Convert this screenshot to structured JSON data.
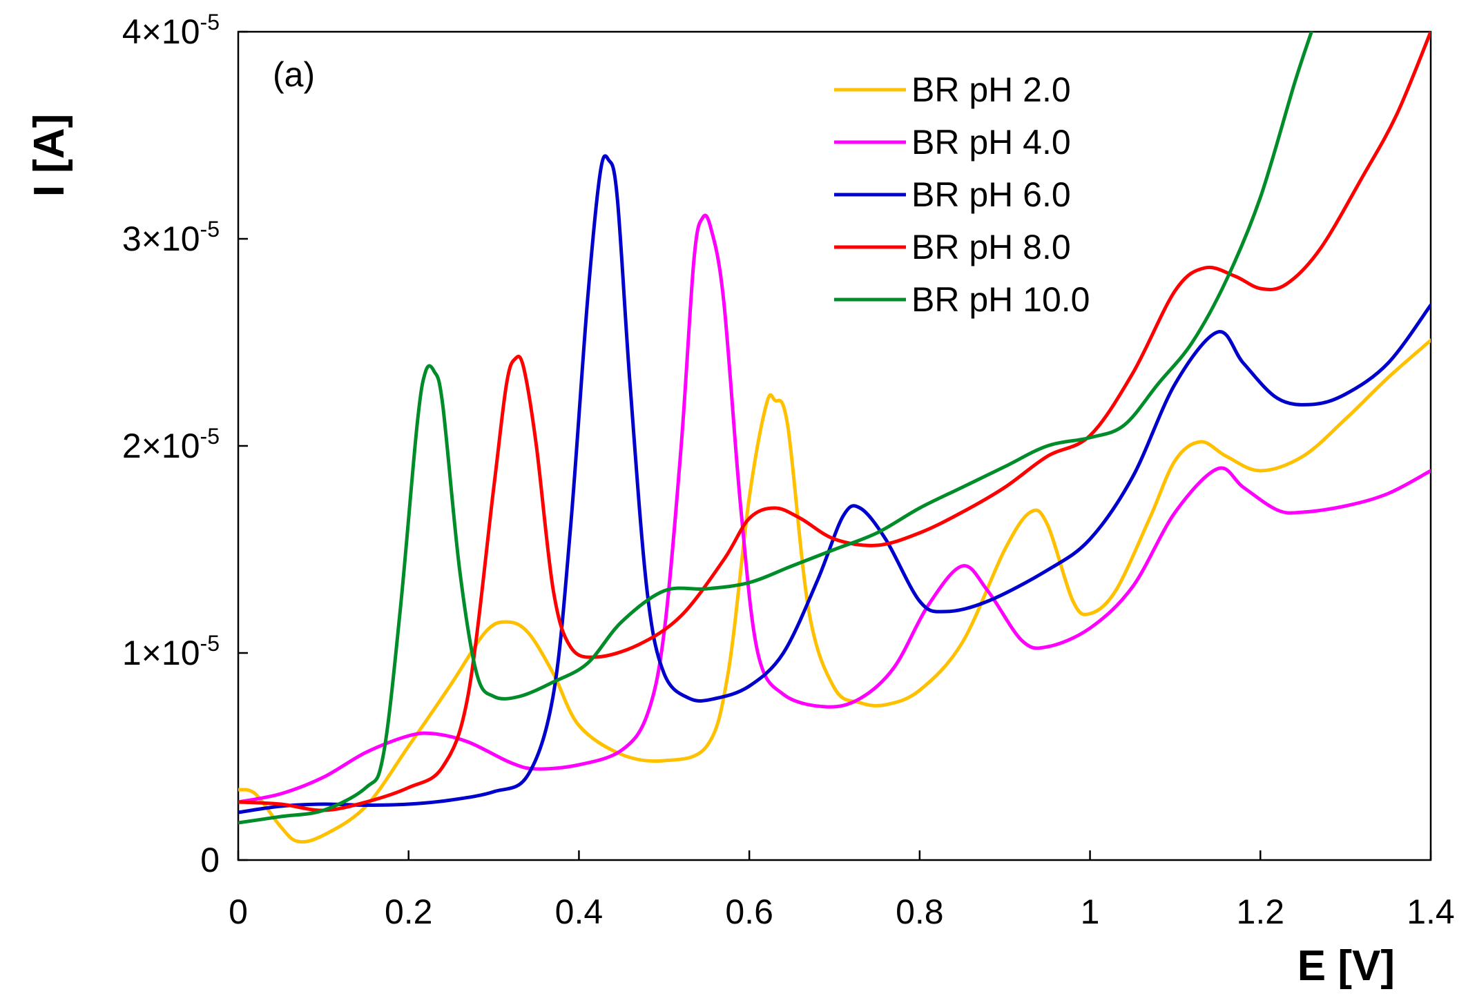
{
  "chart_data": {
    "type": "line",
    "panel_label": "(a)",
    "xlabel": "E [V]",
    "ylabel": "I [A]",
    "xlim": [
      0,
      1.4
    ],
    "ylim": [
      0,
      4e-05
    ],
    "grid": false,
    "legend_position": "top-right",
    "x_ticks": [
      {
        "value": 0,
        "label": "0"
      },
      {
        "value": 0.2,
        "label": "0.2"
      },
      {
        "value": 0.4,
        "label": "0.4"
      },
      {
        "value": 0.6,
        "label": "0.6"
      },
      {
        "value": 0.8,
        "label": "0.8"
      },
      {
        "value": 1.0,
        "label": "1"
      },
      {
        "value": 1.2,
        "label": "1.2"
      },
      {
        "value": 1.4,
        "label": "1.4"
      }
    ],
    "y_ticks": [
      {
        "value": 0,
        "mantissa": "0",
        "exponent": ""
      },
      {
        "value": 1e-05,
        "mantissa": "1×10",
        "exponent": "-5"
      },
      {
        "value": 2e-05,
        "mantissa": "2×10",
        "exponent": "-5"
      },
      {
        "value": 3e-05,
        "mantissa": "3×10",
        "exponent": "-5"
      },
      {
        "value": 4e-05,
        "mantissa": "4×10",
        "exponent": "-5"
      }
    ],
    "series": [
      {
        "name": "BR pH 2.0",
        "color": "#ffc000",
        "points": [
          [
            0,
            3.4e-06
          ],
          [
            0.02,
            3.2e-06
          ],
          [
            0.05,
            1.6e-06
          ],
          [
            0.07,
            9e-07
          ],
          [
            0.1,
            1.2e-06
          ],
          [
            0.15,
            2.6e-06
          ],
          [
            0.2,
            5.5e-06
          ],
          [
            0.25,
            8.5e-06
          ],
          [
            0.29,
            1.1e-05
          ],
          [
            0.315,
            1.15e-05
          ],
          [
            0.34,
            1.1e-05
          ],
          [
            0.37,
            9e-06
          ],
          [
            0.4,
            6.5e-06
          ],
          [
            0.45,
            5.1e-06
          ],
          [
            0.5,
            4.8e-06
          ],
          [
            0.55,
            5.5e-06
          ],
          [
            0.575,
            9e-06
          ],
          [
            0.6,
            1.75e-05
          ],
          [
            0.62,
            2.2e-05
          ],
          [
            0.63,
            2.22e-05
          ],
          [
            0.645,
            2.1e-05
          ],
          [
            0.67,
            1.2e-05
          ],
          [
            0.7,
            8.3e-06
          ],
          [
            0.73,
            7.6e-06
          ],
          [
            0.76,
            7.5e-06
          ],
          [
            0.8,
            8.2e-06
          ],
          [
            0.85,
            1.05e-05
          ],
          [
            0.9,
            1.5e-05
          ],
          [
            0.93,
            1.68e-05
          ],
          [
            0.95,
            1.62e-05
          ],
          [
            0.98,
            1.25e-05
          ],
          [
            1.0,
            1.19e-05
          ],
          [
            1.03,
            1.3e-05
          ],
          [
            1.07,
            1.65e-05
          ],
          [
            1.1,
            1.93e-05
          ],
          [
            1.13,
            2.02e-05
          ],
          [
            1.16,
            1.95e-05
          ],
          [
            1.2,
            1.88e-05
          ],
          [
            1.25,
            1.95e-05
          ],
          [
            1.3,
            2.13e-05
          ],
          [
            1.35,
            2.33e-05
          ],
          [
            1.4,
            2.51e-05
          ]
        ]
      },
      {
        "name": "BR pH 4.0",
        "color": "#ff00ff",
        "points": [
          [
            0,
            2.8e-06
          ],
          [
            0.05,
            3.2e-06
          ],
          [
            0.1,
            4e-06
          ],
          [
            0.15,
            5.2e-06
          ],
          [
            0.2,
            6e-06
          ],
          [
            0.23,
            6.1e-06
          ],
          [
            0.27,
            5.7e-06
          ],
          [
            0.32,
            4.7e-06
          ],
          [
            0.35,
            4.4e-06
          ],
          [
            0.4,
            4.6e-06
          ],
          [
            0.45,
            5.3e-06
          ],
          [
            0.48,
            7e-06
          ],
          [
            0.5,
            1.1e-05
          ],
          [
            0.52,
            2e-05
          ],
          [
            0.535,
            2.9e-05
          ],
          [
            0.545,
            3.1e-05
          ],
          [
            0.555,
            3.05e-05
          ],
          [
            0.57,
            2.7e-05
          ],
          [
            0.59,
            1.7e-05
          ],
          [
            0.61,
            1e-05
          ],
          [
            0.64,
            8e-06
          ],
          [
            0.69,
            7.4e-06
          ],
          [
            0.73,
            7.8e-06
          ],
          [
            0.77,
            9.3e-06
          ],
          [
            0.81,
            1.23e-05
          ],
          [
            0.85,
            1.42e-05
          ],
          [
            0.88,
            1.3e-05
          ],
          [
            0.92,
            1.06e-05
          ],
          [
            0.95,
            1.03e-05
          ],
          [
            1.0,
            1.12e-05
          ],
          [
            1.05,
            1.32e-05
          ],
          [
            1.1,
            1.68e-05
          ],
          [
            1.15,
            1.89e-05
          ],
          [
            1.18,
            1.8e-05
          ],
          [
            1.22,
            1.69e-05
          ],
          [
            1.25,
            1.68e-05
          ],
          [
            1.3,
            1.71e-05
          ],
          [
            1.35,
            1.77e-05
          ],
          [
            1.4,
            1.88e-05
          ]
        ]
      },
      {
        "name": "BR pH 6.0",
        "color": "#0000cc",
        "points": [
          [
            0,
            2.3e-06
          ],
          [
            0.05,
            2.6e-06
          ],
          [
            0.1,
            2.7e-06
          ],
          [
            0.15,
            2.65e-06
          ],
          [
            0.2,
            2.7e-06
          ],
          [
            0.25,
            2.9e-06
          ],
          [
            0.3,
            3.3e-06
          ],
          [
            0.34,
            4.1e-06
          ],
          [
            0.37,
            8e-06
          ],
          [
            0.39,
            1.6e-05
          ],
          [
            0.41,
            2.7e-05
          ],
          [
            0.425,
            3.32e-05
          ],
          [
            0.435,
            3.38e-05
          ],
          [
            0.445,
            3.2e-05
          ],
          [
            0.46,
            2.3e-05
          ],
          [
            0.48,
            1.3e-05
          ],
          [
            0.5,
            9e-06
          ],
          [
            0.53,
            7.8e-06
          ],
          [
            0.56,
            7.8e-06
          ],
          [
            0.6,
            8.4e-06
          ],
          [
            0.64,
            1e-05
          ],
          [
            0.68,
            1.35e-05
          ],
          [
            0.71,
            1.66e-05
          ],
          [
            0.73,
            1.7e-05
          ],
          [
            0.76,
            1.55e-05
          ],
          [
            0.8,
            1.25e-05
          ],
          [
            0.83,
            1.2e-05
          ],
          [
            0.88,
            1.25e-05
          ],
          [
            0.95,
            1.4e-05
          ],
          [
            1.0,
            1.55e-05
          ],
          [
            1.05,
            1.85e-05
          ],
          [
            1.1,
            2.3e-05
          ],
          [
            1.15,
            2.55e-05
          ],
          [
            1.18,
            2.4e-05
          ],
          [
            1.22,
            2.23e-05
          ],
          [
            1.26,
            2.2e-05
          ],
          [
            1.3,
            2.25e-05
          ],
          [
            1.35,
            2.4e-05
          ],
          [
            1.4,
            2.68e-05
          ]
        ]
      },
      {
        "name": "BR pH 8.0",
        "color": "#ff0000",
        "points": [
          [
            0,
            2.8e-06
          ],
          [
            0.05,
            2.7e-06
          ],
          [
            0.1,
            2.4e-06
          ],
          [
            0.15,
            2.8e-06
          ],
          [
            0.2,
            3.5e-06
          ],
          [
            0.24,
            4.5e-06
          ],
          [
            0.27,
            8e-06
          ],
          [
            0.3,
            1.8e-05
          ],
          [
            0.315,
            2.3e-05
          ],
          [
            0.325,
            2.42e-05
          ],
          [
            0.335,
            2.38e-05
          ],
          [
            0.35,
            2e-05
          ],
          [
            0.37,
            1.3e-05
          ],
          [
            0.39,
            1.03e-05
          ],
          [
            0.42,
            9.8e-06
          ],
          [
            0.47,
            1.04e-05
          ],
          [
            0.52,
            1.18e-05
          ],
          [
            0.57,
            1.45e-05
          ],
          [
            0.6,
            1.65e-05
          ],
          [
            0.63,
            1.7e-05
          ],
          [
            0.66,
            1.65e-05
          ],
          [
            0.7,
            1.55e-05
          ],
          [
            0.75,
            1.52e-05
          ],
          [
            0.8,
            1.58e-05
          ],
          [
            0.85,
            1.68e-05
          ],
          [
            0.9,
            1.8e-05
          ],
          [
            0.95,
            1.95e-05
          ],
          [
            1.0,
            2.05e-05
          ],
          [
            1.05,
            2.35e-05
          ],
          [
            1.1,
            2.75e-05
          ],
          [
            1.135,
            2.86e-05
          ],
          [
            1.17,
            2.82e-05
          ],
          [
            1.2,
            2.76e-05
          ],
          [
            1.23,
            2.78e-05
          ],
          [
            1.27,
            2.95e-05
          ],
          [
            1.32,
            3.3e-05
          ],
          [
            1.36,
            3.6e-05
          ],
          [
            1.4,
            4e-05
          ]
        ]
      },
      {
        "name": "BR pH 10.0",
        "color": "#008c28",
        "points": [
          [
            0,
            1.8e-06
          ],
          [
            0.05,
            2.1e-06
          ],
          [
            0.1,
            2.4e-06
          ],
          [
            0.15,
            3.5e-06
          ],
          [
            0.17,
            5e-06
          ],
          [
            0.19,
            1.2e-05
          ],
          [
            0.21,
            2.1e-05
          ],
          [
            0.22,
            2.36e-05
          ],
          [
            0.23,
            2.36e-05
          ],
          [
            0.24,
            2.2e-05
          ],
          [
            0.26,
            1.4e-05
          ],
          [
            0.28,
            9e-06
          ],
          [
            0.3,
            7.9e-06
          ],
          [
            0.33,
            7.9e-06
          ],
          [
            0.37,
            8.6e-06
          ],
          [
            0.41,
            9.5e-06
          ],
          [
            0.45,
            1.15e-05
          ],
          [
            0.5,
            1.3e-05
          ],
          [
            0.55,
            1.31e-05
          ],
          [
            0.6,
            1.34e-05
          ],
          [
            0.65,
            1.42e-05
          ],
          [
            0.7,
            1.5e-05
          ],
          [
            0.75,
            1.58e-05
          ],
          [
            0.8,
            1.7e-05
          ],
          [
            0.85,
            1.8e-05
          ],
          [
            0.9,
            1.9e-05
          ],
          [
            0.95,
            2e-05
          ],
          [
            1.0,
            2.04e-05
          ],
          [
            1.04,
            2.1e-05
          ],
          [
            1.08,
            2.3e-05
          ],
          [
            1.12,
            2.5e-05
          ],
          [
            1.16,
            2.8e-05
          ],
          [
            1.2,
            3.2e-05
          ],
          [
            1.24,
            3.75e-05
          ],
          [
            1.26,
            4e-05
          ]
        ]
      }
    ]
  }
}
